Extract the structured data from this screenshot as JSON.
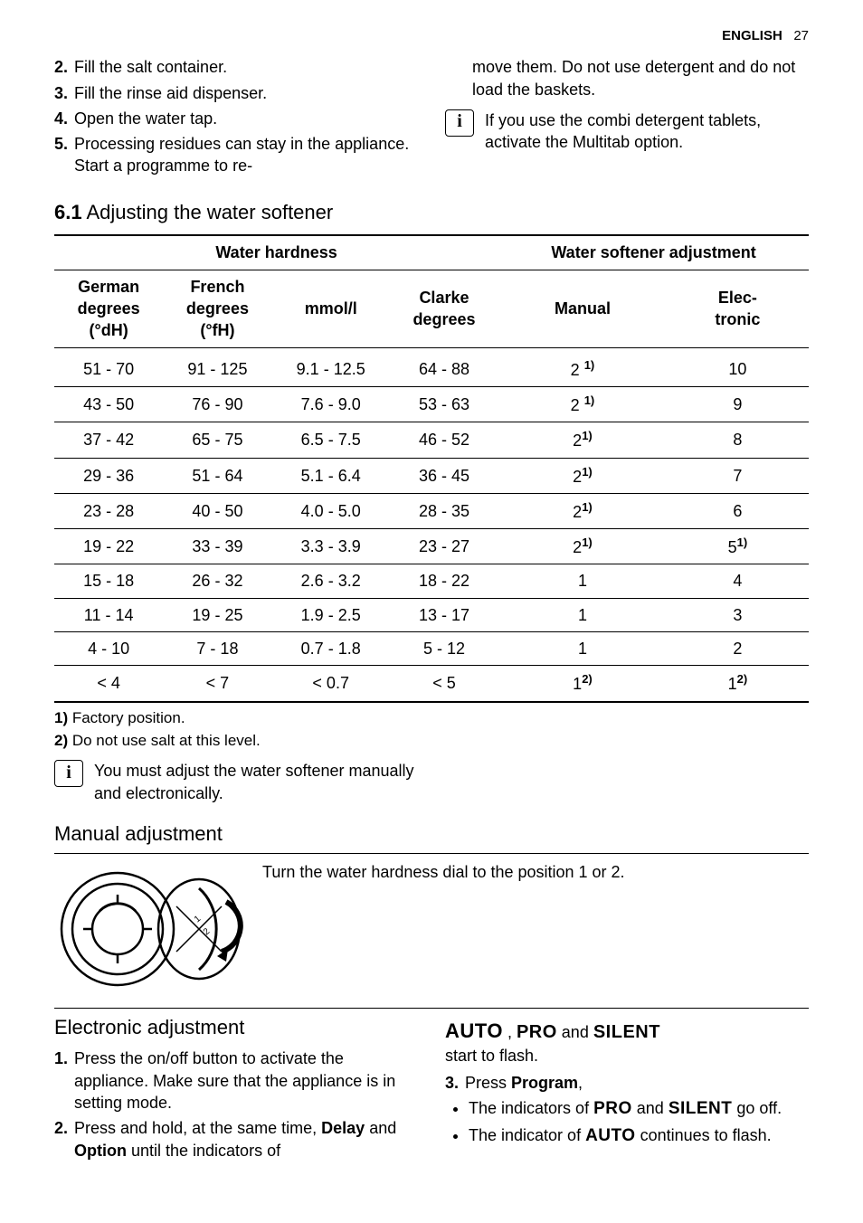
{
  "header": {
    "language": "ENGLISH",
    "page": "27"
  },
  "steps_left": [
    {
      "num": "2.",
      "text": "Fill the salt container."
    },
    {
      "num": "3.",
      "text": "Fill the rinse aid dispenser."
    },
    {
      "num": "4.",
      "text": "Open the water tap."
    },
    {
      "num": "5.",
      "text": "Processing residues can stay in the appliance. Start a programme to re-"
    }
  ],
  "steps_right_cont": "move them. Do not use detergent and do not load the baskets.",
  "info_combi": "If you use the combi detergent tablets, activate the Multitab option.",
  "section_6_1": {
    "num": "6.1",
    "title": "Adjusting the water softener"
  },
  "table": {
    "header_groups": {
      "hardness": "Water hardness",
      "adjustment": "Water softener adjustment"
    },
    "columns": [
      "German degrees (°dH)",
      "French degrees (°fH)",
      "mmol/l",
      "Clarke degrees",
      "Manual",
      "Electronic"
    ],
    "rows": [
      [
        "51 - 70",
        "91 - 125",
        "9.1 - 12.5",
        "64 - 88",
        "2 ",
        "10",
        "1)",
        ""
      ],
      [
        "43 - 50",
        "76 - 90",
        "7.6 - 9.0",
        "53 - 63",
        "2 ",
        "9",
        "1)",
        ""
      ],
      [
        "37 - 42",
        "65 - 75",
        "6.5 - 7.5",
        "46 - 52",
        "2",
        "8",
        "1)",
        ""
      ],
      [
        "29 - 36",
        "51 - 64",
        "5.1 - 6.4",
        "36 - 45",
        "2",
        "7",
        "1)",
        ""
      ],
      [
        "23 - 28",
        "40 - 50",
        "4.0 - 5.0",
        "28 - 35",
        "2",
        "6",
        "1)",
        ""
      ],
      [
        "19 - 22",
        "33 - 39",
        "3.3 - 3.9",
        "23 - 27",
        "2",
        "5",
        "1)",
        "1)"
      ],
      [
        "15 - 18",
        "26 - 32",
        "2.6 - 3.2",
        "18 - 22",
        "1",
        "4",
        "",
        ""
      ],
      [
        "11 - 14",
        "19 - 25",
        "1.9 - 2.5",
        "13 - 17",
        "1",
        "3",
        "",
        ""
      ],
      [
        "4 - 10",
        "7 - 18",
        "0.7 - 1.8",
        "5 - 12",
        "1",
        "2",
        "",
        ""
      ],
      [
        "< 4",
        "< 7",
        "< 0.7",
        "< 5",
        "1",
        "1",
        "2)",
        "2)"
      ]
    ]
  },
  "footnotes": [
    {
      "mark": "1)",
      "text": "Factory position."
    },
    {
      "mark": "2)",
      "text": "Do not use salt at this level."
    }
  ],
  "info_adjust": "You must adjust the water softener manually and electronically.",
  "manual_title": "Manual adjustment",
  "manual_text": "Turn the water hardness dial to the position 1 or 2.",
  "electronic_title": "Electronic adjustment",
  "electronic_left": [
    {
      "num": "1.",
      "text": "Press the on/off button to activate the appliance. Make sure that the appliance is in setting mode."
    },
    {
      "num": "2.",
      "pre": "Press and hold, at the same time, ",
      "bold1": "Delay",
      "mid": " and ",
      "bold2": "Option",
      "post": " until the indicators of "
    }
  ],
  "electronic_right": {
    "line1": {
      "auto": "AUTO",
      "sep": " , ",
      "pro": "PRO",
      "and": " and ",
      "silent": "SILENT"
    },
    "line1b": "start to flash.",
    "step3": {
      "num": "3.",
      "pre": "Press ",
      "bold": "Program",
      "post": ","
    },
    "bullets": [
      {
        "pre": "The indicators of ",
        "b1": "PRO",
        "mid": " and ",
        "b2": "SILENT",
        "post": " go off."
      },
      {
        "pre": "The indicator of ",
        "b1": "AUTO",
        "post": " continues to flash."
      }
    ]
  },
  "colors": {
    "text": "#000000",
    "bg": "#ffffff",
    "rule": "#000000"
  }
}
